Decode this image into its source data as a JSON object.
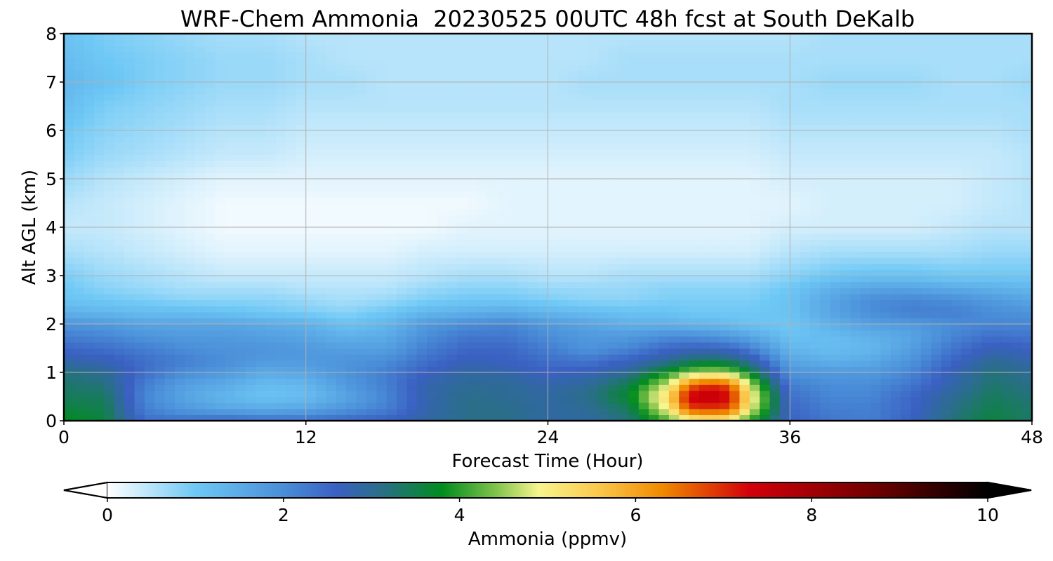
{
  "chart_data": {
    "type": "heatmap",
    "title": "WRF-Chem Ammonia  20230525 00UTC 48h fcst at South DeKalb",
    "xlabel": "Forecast Time (Hour)",
    "ylabel": "Alt AGL (km)",
    "xlim": [
      0,
      48
    ],
    "ylim": [
      0,
      8
    ],
    "xticks": [
      0,
      12,
      24,
      36,
      48
    ],
    "yticks": [
      0,
      1,
      2,
      3,
      4,
      5,
      6,
      7,
      8
    ],
    "grid": true,
    "colorbar": {
      "label": "Ammonia  (ppmv)",
      "range": [
        0,
        10
      ],
      "ticks": [
        0,
        2,
        4,
        6,
        8,
        10
      ],
      "extend": "both",
      "stops": [
        {
          "value": 0,
          "color": "#ffffff"
        },
        {
          "value": 1,
          "color": "#6ec8f5"
        },
        {
          "value": 2,
          "color": "#4a8ed8"
        },
        {
          "value": 2.6,
          "color": "#3a60c2"
        },
        {
          "value": 3.1,
          "color": "#2a6e8a"
        },
        {
          "value": 3.8,
          "color": "#008c1e"
        },
        {
          "value": 4.4,
          "color": "#7ec24a"
        },
        {
          "value": 4.9,
          "color": "#f7f58e"
        },
        {
          "value": 5.6,
          "color": "#fbc64a"
        },
        {
          "value": 6.3,
          "color": "#f08a00"
        },
        {
          "value": 7.3,
          "color": "#d2000a"
        },
        {
          "value": 8.6,
          "color": "#780000"
        },
        {
          "value": 10,
          "color": "#000000"
        }
      ]
    },
    "times": [
      0,
      2,
      4,
      6,
      8,
      10,
      12,
      14,
      16,
      18,
      20,
      22,
      24,
      26,
      28,
      30,
      31,
      32,
      33,
      34,
      36,
      38,
      40,
      42,
      44,
      46,
      48
    ],
    "altitudes": [
      0,
      0.25,
      0.5,
      0.75,
      1.0,
      1.25,
      1.5,
      1.75,
      2.0,
      2.25,
      2.5,
      2.75,
      3.0,
      3.5,
      4.0,
      4.5,
      5.0,
      5.5,
      6.0,
      6.5,
      7.0,
      7.5,
      8.0
    ],
    "values": [
      [
        3.8,
        3.6,
        3.4,
        3.3,
        3.2,
        2.8,
        2.5,
        2.2,
        1.9,
        1.4,
        1.1,
        1.0,
        0.9,
        0.6,
        0.4,
        0.5,
        0.7,
        0.9,
        1.0,
        1.2,
        1.3,
        1.2,
        1.1
      ],
      [
        3.6,
        3.5,
        3.4,
        3.2,
        3.0,
        2.7,
        2.4,
        2.1,
        1.8,
        1.3,
        1.0,
        0.8,
        0.7,
        0.5,
        0.4,
        0.4,
        0.5,
        0.7,
        0.8,
        0.9,
        1.1,
        1.0,
        0.9
      ],
      [
        2.4,
        2.2,
        2.1,
        2.2,
        2.4,
        2.4,
        2.2,
        1.9,
        1.6,
        1.2,
        0.9,
        0.7,
        0.6,
        0.4,
        0.3,
        0.3,
        0.4,
        0.6,
        0.7,
        0.8,
        0.9,
        0.9,
        0.8
      ],
      [
        2.4,
        1.8,
        1.6,
        1.7,
        2.0,
        2.2,
        2.0,
        1.8,
        1.6,
        1.2,
        0.8,
        0.6,
        0.5,
        0.3,
        0.2,
        0.2,
        0.3,
        0.5,
        0.6,
        0.7,
        0.8,
        0.8,
        0.7
      ],
      [
        2.5,
        1.6,
        1.3,
        1.5,
        1.8,
        2.0,
        1.9,
        1.8,
        1.6,
        1.1,
        0.8,
        0.6,
        0.4,
        0.2,
        0.1,
        0.1,
        0.2,
        0.4,
        0.5,
        0.6,
        0.7,
        0.7,
        0.6
      ],
      [
        2.4,
        1.5,
        1.1,
        1.2,
        1.5,
        1.8,
        1.9,
        1.7,
        1.5,
        1.0,
        0.8,
        0.6,
        0.4,
        0.2,
        0.1,
        0.1,
        0.2,
        0.4,
        0.5,
        0.6,
        0.7,
        0.7,
        0.6
      ],
      [
        2.4,
        1.6,
        1.2,
        1.3,
        1.6,
        1.8,
        1.8,
        1.6,
        1.4,
        0.9,
        0.7,
        0.5,
        0.4,
        0.2,
        0.1,
        0.1,
        0.2,
        0.3,
        0.4,
        0.5,
        0.6,
        0.6,
        0.5
      ],
      [
        2.5,
        1.9,
        1.6,
        1.8,
        1.9,
        1.9,
        1.7,
        1.4,
        1.1,
        0.8,
        0.6,
        0.5,
        0.4,
        0.2,
        0.1,
        0.1,
        0.2,
        0.3,
        0.4,
        0.5,
        0.6,
        0.5,
        0.5
      ],
      [
        2.6,
        2.2,
        2.1,
        2.2,
        2.2,
        2.0,
        1.7,
        1.5,
        1.3,
        1.0,
        0.7,
        0.5,
        0.4,
        0.2,
        0.1,
        0.1,
        0.2,
        0.3,
        0.4,
        0.5,
        0.5,
        0.5,
        0.5
      ],
      [
        2.9,
        2.8,
        2.8,
        2.8,
        2.6,
        2.4,
        2.2,
        2.0,
        1.8,
        1.3,
        0.9,
        0.7,
        0.5,
        0.3,
        0.1,
        0.1,
        0.2,
        0.3,
        0.4,
        0.5,
        0.5,
        0.5,
        0.5
      ],
      [
        3.1,
        3.1,
        3.1,
        3.0,
        2.9,
        2.7,
        2.5,
        2.3,
        2.0,
        1.4,
        1.0,
        0.8,
        0.6,
        0.3,
        0.2,
        0.1,
        0.2,
        0.3,
        0.4,
        0.5,
        0.5,
        0.5,
        0.5
      ],
      [
        3.1,
        3.1,
        3.0,
        3.0,
        2.8,
        2.6,
        2.5,
        2.3,
        2.1,
        1.5,
        1.0,
        0.8,
        0.6,
        0.3,
        0.2,
        0.2,
        0.2,
        0.3,
        0.4,
        0.5,
        0.5,
        0.5,
        0.5
      ],
      [
        2.9,
        2.9,
        2.9,
        2.8,
        2.6,
        2.4,
        2.2,
        2.0,
        1.8,
        1.3,
        0.9,
        0.7,
        0.5,
        0.3,
        0.2,
        0.2,
        0.2,
        0.3,
        0.4,
        0.5,
        0.5,
        0.5,
        0.5
      ],
      [
        2.9,
        3.0,
        3.1,
        3.0,
        2.7,
        2.3,
        1.9,
        1.8,
        1.6,
        1.2,
        0.8,
        0.7,
        0.5,
        0.3,
        0.2,
        0.2,
        0.2,
        0.3,
        0.4,
        0.5,
        0.6,
        0.5,
        0.5
      ],
      [
        3.2,
        3.4,
        3.7,
        3.5,
        3.0,
        2.6,
        2.1,
        1.8,
        1.4,
        1.1,
        0.8,
        0.7,
        0.6,
        0.3,
        0.2,
        0.2,
        0.2,
        0.3,
        0.4,
        0.5,
        0.6,
        0.6,
        0.5
      ],
      [
        4.2,
        5.0,
        5.4,
        4.8,
        3.9,
        3.0,
        2.5,
        2.0,
        1.4,
        1.1,
        0.9,
        0.8,
        0.6,
        0.3,
        0.2,
        0.2,
        0.2,
        0.3,
        0.4,
        0.5,
        0.6,
        0.6,
        0.5
      ],
      [
        4.8,
        6.8,
        7.4,
        6.5,
        4.4,
        3.3,
        2.6,
        2.0,
        1.3,
        1.0,
        0.9,
        0.8,
        0.6,
        0.3,
        0.2,
        0.2,
        0.2,
        0.3,
        0.4,
        0.5,
        0.6,
        0.6,
        0.5
      ],
      [
        5.0,
        6.9,
        7.6,
        7.0,
        4.6,
        3.4,
        2.6,
        1.9,
        1.3,
        1.0,
        0.9,
        0.8,
        0.6,
        0.3,
        0.2,
        0.2,
        0.2,
        0.3,
        0.4,
        0.5,
        0.6,
        0.6,
        0.5
      ],
      [
        4.9,
        6.8,
        7.3,
        6.7,
        4.5,
        3.3,
        2.5,
        1.8,
        1.2,
        1.0,
        0.9,
        0.8,
        0.6,
        0.3,
        0.2,
        0.2,
        0.2,
        0.3,
        0.4,
        0.5,
        0.6,
        0.6,
        0.5
      ],
      [
        4.0,
        4.9,
        5.2,
        4.7,
        3.7,
        2.9,
        2.2,
        1.6,
        1.1,
        1.0,
        0.9,
        0.8,
        0.6,
        0.3,
        0.2,
        0.2,
        0.2,
        0.3,
        0.4,
        0.5,
        0.6,
        0.6,
        0.5
      ],
      [
        2.6,
        2.5,
        2.4,
        2.2,
        1.9,
        1.6,
        1.3,
        1.1,
        1.0,
        1.1,
        1.1,
        1.0,
        0.8,
        0.5,
        0.3,
        0.2,
        0.3,
        0.4,
        0.5,
        0.6,
        0.6,
        0.6,
        0.5
      ],
      [
        2.3,
        2.2,
        2.1,
        2.0,
        1.8,
        1.4,
        1.2,
        1.2,
        1.4,
        1.6,
        1.6,
        1.4,
        1.0,
        0.6,
        0.3,
        0.3,
        0.3,
        0.4,
        0.5,
        0.6,
        0.7,
        0.6,
        0.6
      ],
      [
        2.2,
        2.2,
        2.1,
        2.0,
        1.8,
        1.5,
        1.3,
        1.4,
        1.7,
        2.0,
        2.0,
        1.6,
        1.1,
        0.6,
        0.3,
        0.3,
        0.3,
        0.4,
        0.5,
        0.6,
        0.7,
        0.6,
        0.6
      ],
      [
        2.6,
        2.5,
        2.5,
        2.3,
        2.1,
        1.9,
        1.7,
        1.6,
        1.8,
        2.2,
        2.1,
        1.6,
        1.1,
        0.6,
        0.3,
        0.3,
        0.3,
        0.4,
        0.5,
        0.6,
        0.7,
        0.6,
        0.6
      ],
      [
        3.2,
        3.1,
        3.0,
        2.8,
        2.7,
        2.5,
        2.3,
        2.1,
        2.0,
        2.2,
        2.0,
        1.5,
        1.0,
        0.6,
        0.4,
        0.3,
        0.3,
        0.4,
        0.5,
        0.6,
        0.6,
        0.6,
        0.6
      ],
      [
        3.6,
        3.5,
        3.4,
        3.3,
        3.2,
        3.0,
        2.7,
        2.4,
        2.1,
        2.0,
        1.8,
        1.4,
        1.0,
        0.7,
        0.5,
        0.4,
        0.4,
        0.4,
        0.5,
        0.6,
        0.6,
        0.6,
        0.6
      ],
      [
        3.3,
        3.3,
        3.2,
        3.1,
        3.0,
        2.8,
        2.6,
        2.3,
        2.1,
        1.9,
        1.6,
        1.3,
        1.0,
        0.7,
        0.5,
        0.5,
        0.5,
        0.5,
        0.6,
        0.6,
        0.7,
        0.6,
        0.6
      ]
    ]
  }
}
